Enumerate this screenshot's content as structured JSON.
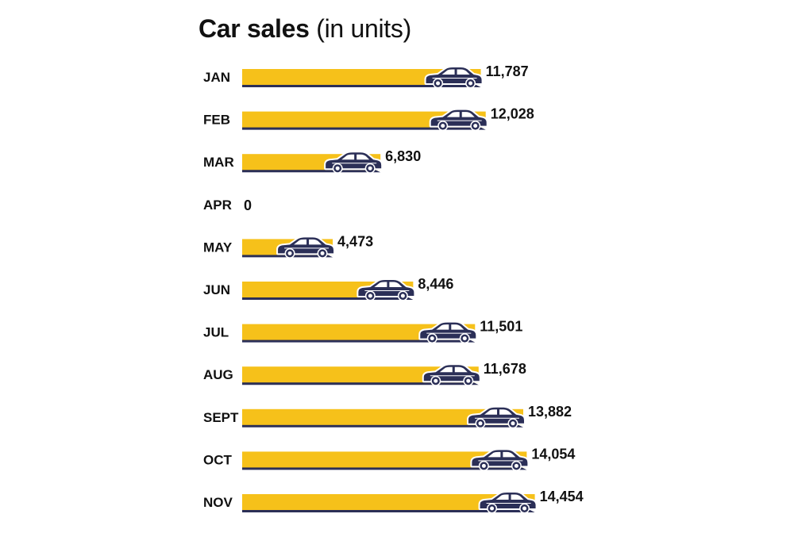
{
  "chart_data": {
    "type": "bar",
    "orientation": "horizontal",
    "title_main": "Car sales",
    "title_sub": "(in units)",
    "categories": [
      "JAN",
      "FEB",
      "MAR",
      "APR",
      "MAY",
      "JUN",
      "JUL",
      "AUG",
      "SEPT",
      "OCT",
      "NOV"
    ],
    "values": [
      11787,
      12028,
      6830,
      0,
      4473,
      8446,
      11501,
      11678,
      13882,
      14054,
      14454
    ],
    "value_labels": [
      "11,787",
      "12,028",
      "6,830",
      "0",
      "4,473",
      "8,446",
      "11,501",
      "11,678",
      "13,882",
      "14,054",
      "14,454"
    ],
    "bar_marker_icon": "car-icon",
    "colors": {
      "bar": "#F6C11A",
      "bar_shadow": "#2B2F57",
      "car": "#2B2F57",
      "text": "#111111"
    }
  }
}
